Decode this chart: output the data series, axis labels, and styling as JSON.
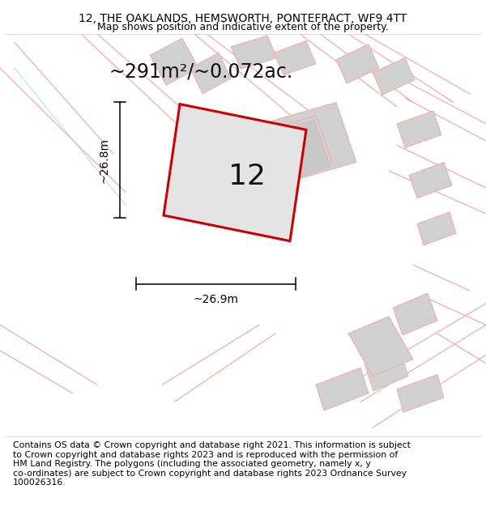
{
  "title": "12, THE OAKLANDS, HEMSWORTH, PONTEFRACT, WF9 4TT",
  "subtitle": "Map shows position and indicative extent of the property.",
  "area_text": "~291m²/~0.072ac.",
  "width_label": "~26.9m",
  "height_label": "~26.8m",
  "number_label": "12",
  "footer": "Contains OS data © Crown copyright and database right 2021. This information is subject to Crown copyright and database rights 2023 and is reproduced with the permission of HM Land Registry. The polygons (including the associated geometry, namely x, y co-ordinates) are subject to Crown copyright and database rights 2023 Ordnance Survey 100026316.",
  "bg_color": "#ffffff",
  "map_bg": "#ffffff",
  "plot_fill": "#e0e0e0",
  "plot_edge": "#cc0000",
  "pink": "#f5aaaa",
  "gray": "#d0d0d0",
  "title_fontsize": 10,
  "subtitle_fontsize": 9,
  "area_fontsize": 17,
  "number_fontsize": 26,
  "dim_fontsize": 10,
  "footer_fontsize": 7.8
}
